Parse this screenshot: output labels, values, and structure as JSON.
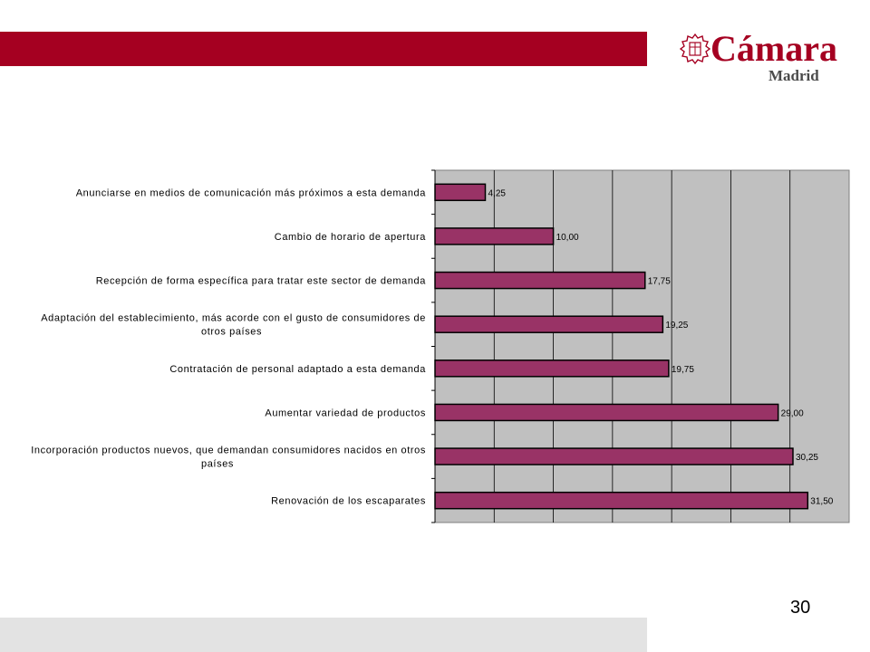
{
  "colors": {
    "band_top": "#a50021",
    "band_bottom": "#e3e3e3",
    "plot_bg": "#c0c0c0",
    "bar_fill": "#993366",
    "bar_stroke": "#000000",
    "logo": "#a50021"
  },
  "logo": {
    "word": "Cámara",
    "subtitle": "Madrid",
    "icon": "chamber-seal-icon"
  },
  "page_number": "30",
  "chart_data": {
    "type": "bar",
    "orientation": "horizontal",
    "xlim": [
      0,
      35
    ],
    "grid": true,
    "gridline_step": 5,
    "categories": [
      "Anunciarse en medios de comunicación más próximos a esta demanda",
      "Cambio de horario de apertura",
      "Recepción de forma específica para tratar este sector de demanda",
      "Adaptación del establecimiento, más acorde con el gusto de consumidores de otros países",
      "Contratación de personal adaptado a esta demanda",
      "Aumentar variedad de productos",
      "Incorporación productos nuevos, que demandan consumidores nacidos en otros países",
      "Renovación de los escaparates"
    ],
    "category_lines": [
      [
        "Anunciarse en medios de comunicación más próximos a esta demanda"
      ],
      [
        "Cambio de horario de apertura"
      ],
      [
        "Recepción de forma específica para tratar este sector de demanda"
      ],
      [
        "Adaptación del establecimiento, más acorde con el gusto de consumidores de",
        "otros países"
      ],
      [
        "Contratación de personal adaptado a esta demanda"
      ],
      [
        "Aumentar variedad de productos"
      ],
      [
        "Incorporación productos nuevos, que demandan consumidores nacidos en otros",
        "países"
      ],
      [
        "Renovación de los escaparates"
      ]
    ],
    "values": [
      4.25,
      10.0,
      17.75,
      19.25,
      19.75,
      29.0,
      30.25,
      31.5
    ],
    "data_labels": [
      "4,25",
      "10,00",
      "17,75",
      "19,25",
      "19,75",
      "29,00",
      "30,25",
      "31,50"
    ]
  }
}
